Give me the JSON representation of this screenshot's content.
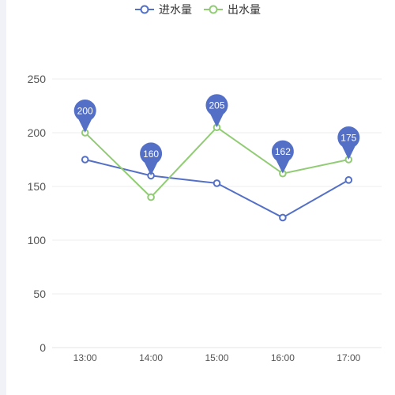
{
  "chart_data": {
    "type": "line",
    "categories": [
      "13:00",
      "14:00",
      "15:00",
      "16:00",
      "17:00"
    ],
    "series": [
      {
        "name": "进水量",
        "values": [
          175,
          160,
          153,
          121,
          156
        ],
        "color": "#5470c6"
      },
      {
        "name": "出水量",
        "values": [
          200,
          140,
          205,
          162,
          175
        ],
        "color": "#91cc75"
      }
    ],
    "markpoints": [
      {
        "category": "13:00",
        "value": 200,
        "label": "200"
      },
      {
        "category": "14:00",
        "value": 160,
        "label": "160"
      },
      {
        "category": "15:00",
        "value": 205,
        "label": "205"
      },
      {
        "category": "16:00",
        "value": 162,
        "label": "162"
      },
      {
        "category": "17:00",
        "value": 175,
        "label": "175"
      }
    ],
    "markpoint_color": "#5470c6",
    "yticks": [
      "0",
      "50",
      "100",
      "150",
      "200",
      "250"
    ],
    "ylim": [
      0,
      250
    ],
    "grid": true,
    "legend_position": "top-center",
    "title": "",
    "xlabel": "",
    "ylabel": ""
  }
}
